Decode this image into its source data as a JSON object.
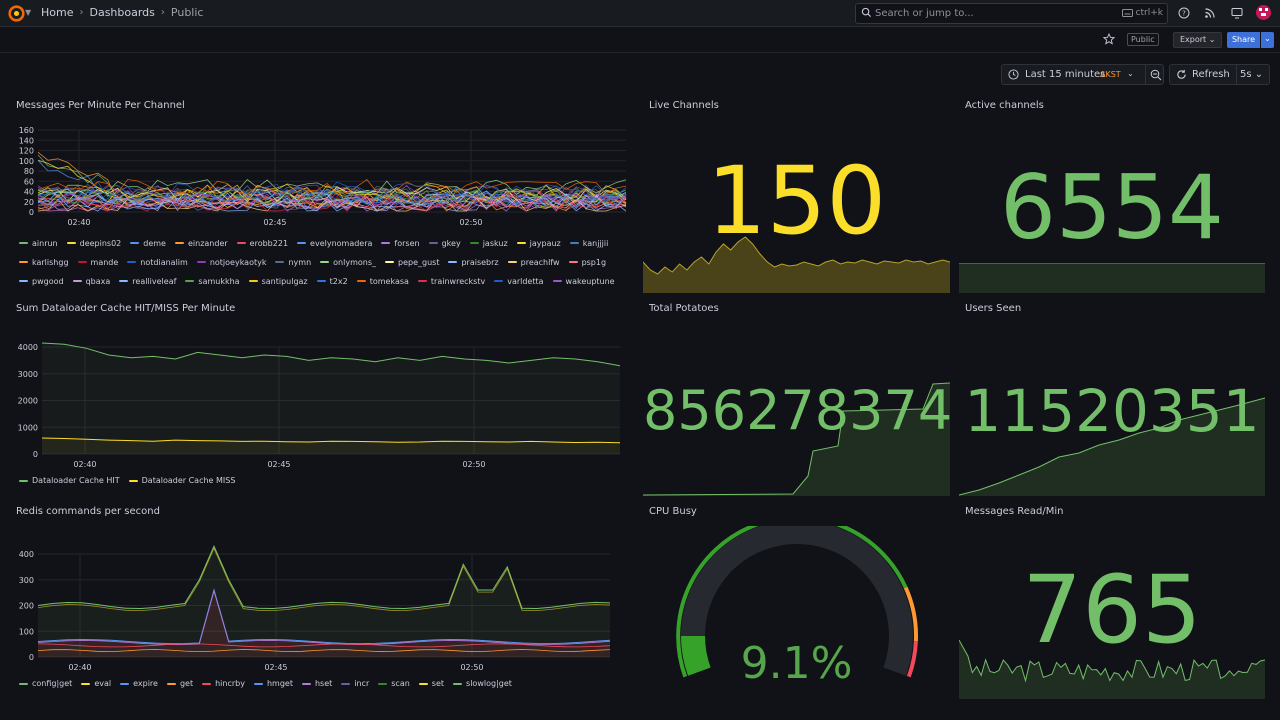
{
  "topbar": {
    "breadcrumbs": [
      "Home",
      "Dashboards",
      "Public"
    ],
    "search_placeholder": "Search or jump to...",
    "search_shortcut": "ctrl+k"
  },
  "toolbar": {
    "public_badge": "Public",
    "export_label": "Export",
    "share_label": "Share"
  },
  "timepicker": {
    "range_label": "Last 15 minutes",
    "timezone": "AKST",
    "refresh_label": "Refresh",
    "refresh_interval": "5s"
  },
  "colors": {
    "green": "#73bf69",
    "yellow": "#fade2a",
    "blue": "#5794f2",
    "orange": "#ff9830",
    "red": "#f2495c",
    "purple": "#b877d9",
    "text": "#ccccdc"
  },
  "panels": {
    "messages_per_minute": {
      "title": "Messages Per Minute Per Channel",
      "y_ticks": [
        "160",
        "140",
        "120",
        "100",
        "80",
        "60",
        "40",
        "20",
        "0"
      ],
      "x_ticks": [
        "02:40",
        "02:45",
        "02:50"
      ],
      "legend": [
        {
          "name": "ainrun",
          "color": "#73bf69"
        },
        {
          "name": "deepins02",
          "color": "#fade2a"
        },
        {
          "name": "deme",
          "color": "#5794f2"
        },
        {
          "name": "einzander",
          "color": "#ff9830"
        },
        {
          "name": "erobb221",
          "color": "#f2495c"
        },
        {
          "name": "evelynomadera",
          "color": "#5794f2"
        },
        {
          "name": "forsen",
          "color": "#b877d9"
        },
        {
          "name": "gkey",
          "color": "#705da0"
        },
        {
          "name": "jaskuz",
          "color": "#37872d"
        },
        {
          "name": "jaypauz",
          "color": "#fade2a"
        },
        {
          "name": "kanjjjii",
          "color": "#447ebc"
        },
        {
          "name": "karlishgg",
          "color": "#ff9830"
        },
        {
          "name": "mande",
          "color": "#c4162a"
        },
        {
          "name": "notdianalim",
          "color": "#1f60c4"
        },
        {
          "name": "notjoeykaotyk",
          "color": "#8f3bb8"
        },
        {
          "name": "nymn",
          "color": "#5a6e8c"
        },
        {
          "name": "onlymons_",
          "color": "#96d98d"
        },
        {
          "name": "pepe_gust",
          "color": "#fff899"
        },
        {
          "name": "praisebrz",
          "color": "#8ab8ff"
        },
        {
          "name": "preachlfw",
          "color": "#ffcb7d"
        },
        {
          "name": "psp1g",
          "color": "#ff7383"
        },
        {
          "name": "pwgood",
          "color": "#8ab8ff"
        },
        {
          "name": "qbaxa",
          "color": "#ca95e5"
        },
        {
          "name": "realliveleaf",
          "color": "#8ab8ff"
        },
        {
          "name": "samukkha",
          "color": "#56a64b"
        },
        {
          "name": "santipulgaz",
          "color": "#f2cc0c"
        },
        {
          "name": "t2x2",
          "color": "#3274d9"
        },
        {
          "name": "tomekasa",
          "color": "#fa6400"
        },
        {
          "name": "trainwreckstv",
          "color": "#e02f44"
        },
        {
          "name": "varldetta",
          "color": "#1f60c4"
        },
        {
          "name": "wakeuptune",
          "color": "#a352cc"
        }
      ]
    },
    "live_channels": {
      "title": "Live Channels",
      "value": "150"
    },
    "active_channels": {
      "title": "Active channels",
      "value": "6554"
    },
    "dataloader": {
      "title": "Sum Dataloader Cache HIT/MISS Per Minute",
      "y_ticks": [
        "4000",
        "3000",
        "2000",
        "1000",
        "0"
      ],
      "x_ticks": [
        "02:40",
        "02:45",
        "02:50"
      ],
      "legend": [
        {
          "name": "Dataloader Cache HIT",
          "color": "#73bf69"
        },
        {
          "name": "Dataloader Cache MISS",
          "color": "#fade2a"
        }
      ]
    },
    "total_potatoes": {
      "title": "Total Potatoes",
      "value": "856278374"
    },
    "users_seen": {
      "title": "Users Seen",
      "value": "11520351"
    },
    "redis": {
      "title": "Redis commands per second",
      "y_ticks": [
        "400",
        "300",
        "200",
        "100",
        "0"
      ],
      "x_ticks": [
        "02:40",
        "02:45",
        "02:50"
      ],
      "legend": [
        {
          "name": "config|get",
          "color": "#73bf69"
        },
        {
          "name": "eval",
          "color": "#fade2a"
        },
        {
          "name": "expire",
          "color": "#5794f2"
        },
        {
          "name": "get",
          "color": "#ff9830"
        },
        {
          "name": "hincrby",
          "color": "#f2495c"
        },
        {
          "name": "hmget",
          "color": "#5794f2"
        },
        {
          "name": "hset",
          "color": "#b877d9"
        },
        {
          "name": "incr",
          "color": "#705da0"
        },
        {
          "name": "scan",
          "color": "#37872d"
        },
        {
          "name": "set",
          "color": "#fade2a"
        },
        {
          "name": "slowlog|get",
          "color": "#73bf69"
        }
      ]
    },
    "cpu_busy": {
      "title": "CPU Busy",
      "value": "9.1%",
      "percent": 9.1
    },
    "messages_read": {
      "title": "Messages Read/Min",
      "value": "765"
    }
  },
  "chart_data": [
    {
      "type": "line",
      "title": "Sum Dataloader Cache HIT/MISS Per Minute",
      "ylim": [
        0,
        4000
      ],
      "series": [
        {
          "name": "Dataloader Cache HIT",
          "values": [
            4150,
            4100,
            3950,
            3700,
            3600,
            3650,
            3550,
            3800,
            3700,
            3600,
            3700,
            3650,
            3500,
            3600,
            3550,
            3450,
            3600,
            3500,
            3650,
            3550,
            3500,
            3400,
            3500,
            3600,
            3550,
            3450,
            3300
          ]
        },
        {
          "name": "Dataloader Cache MISS",
          "values": [
            600,
            580,
            550,
            520,
            500,
            480,
            520,
            500,
            490,
            470,
            480,
            460,
            450,
            480,
            470,
            460,
            440,
            450,
            480,
            470,
            460,
            450,
            470,
            450,
            430,
            440,
            420
          ]
        }
      ]
    }
  ]
}
